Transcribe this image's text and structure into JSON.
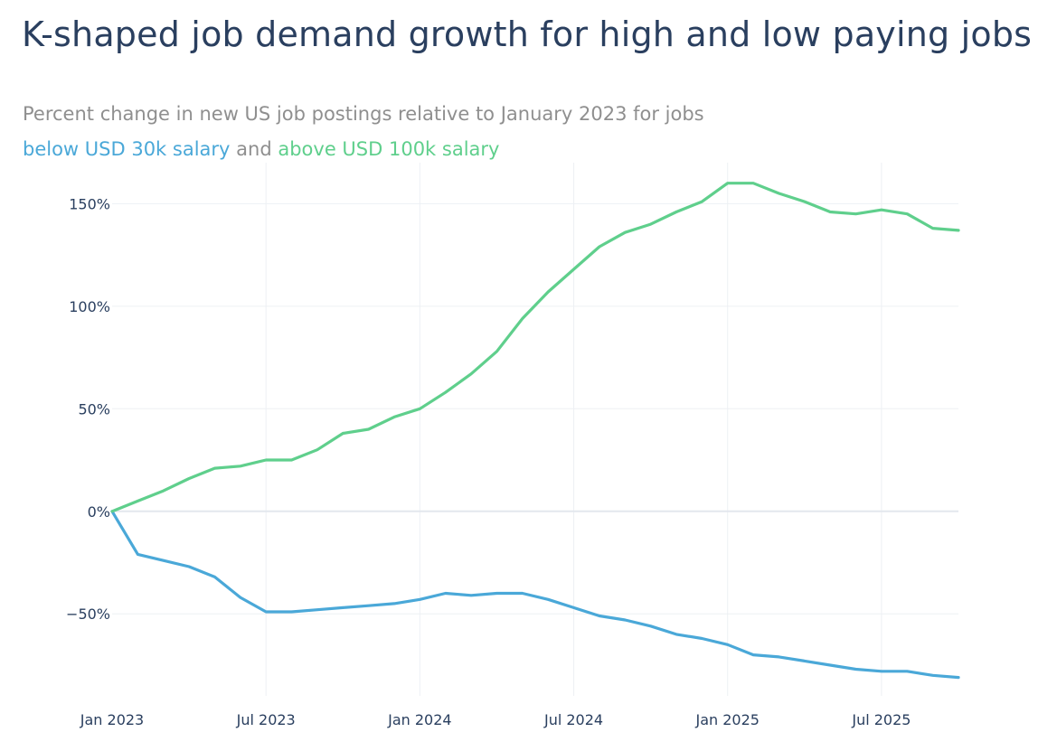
{
  "title": "K-shaped job demand growth for high and low paying jobs",
  "subtitle": {
    "line1": "Percent change in new US job postings relative to January 2023 for jobs",
    "low_label": "below USD 30k salary",
    "joiner": "and",
    "high_label": "above USD 100k salary"
  },
  "chart_data": {
    "type": "line",
    "title": "K-shaped job demand growth for high and low paying jobs",
    "x_ticks": [
      "Jan 2023",
      "Jul 2023",
      "Jan 2024",
      "Jul 2024",
      "Jan 2025",
      "Jul 2025"
    ],
    "y_ticks": [
      "150%",
      "100%",
      "50%",
      "0%",
      "−50%"
    ],
    "y_tick_values": [
      150,
      100,
      50,
      0,
      -50
    ],
    "xlim": [
      "2023-01",
      "2025-10"
    ],
    "ylim": [
      -90,
      170
    ],
    "grid": true,
    "x": [
      "2023-01",
      "2023-02",
      "2023-03",
      "2023-04",
      "2023-05",
      "2023-06",
      "2023-07",
      "2023-08",
      "2023-09",
      "2023-10",
      "2023-11",
      "2023-12",
      "2024-01",
      "2024-02",
      "2024-03",
      "2024-04",
      "2024-05",
      "2024-06",
      "2024-07",
      "2024-08",
      "2024-09",
      "2024-10",
      "2024-11",
      "2024-12",
      "2025-01",
      "2025-02",
      "2025-03",
      "2025-04",
      "2025-05",
      "2025-06",
      "2025-07",
      "2025-08",
      "2025-09",
      "2025-10"
    ],
    "series": [
      {
        "name": "above USD 100k salary",
        "color": "#5fcf8c",
        "values": [
          0,
          5,
          10,
          16,
          21,
          22,
          25,
          25,
          30,
          38,
          40,
          46,
          50,
          58,
          67,
          78,
          94,
          107,
          118,
          129,
          136,
          140,
          146,
          151,
          160,
          160,
          155,
          151,
          146,
          145,
          147,
          145,
          138,
          137
        ]
      },
      {
        "name": "below USD 30k salary",
        "color": "#4aa8d8",
        "values": [
          0,
          -21,
          -24,
          -27,
          -32,
          -42,
          -49,
          -49,
          -48,
          -47,
          -46,
          -45,
          -43,
          -40,
          -41,
          -40,
          -40,
          -43,
          -47,
          -51,
          -53,
          -56,
          -60,
          -62,
          -65,
          -70,
          -71,
          -73,
          -75,
          -77,
          -78,
          -78,
          -80,
          -81
        ]
      }
    ]
  }
}
